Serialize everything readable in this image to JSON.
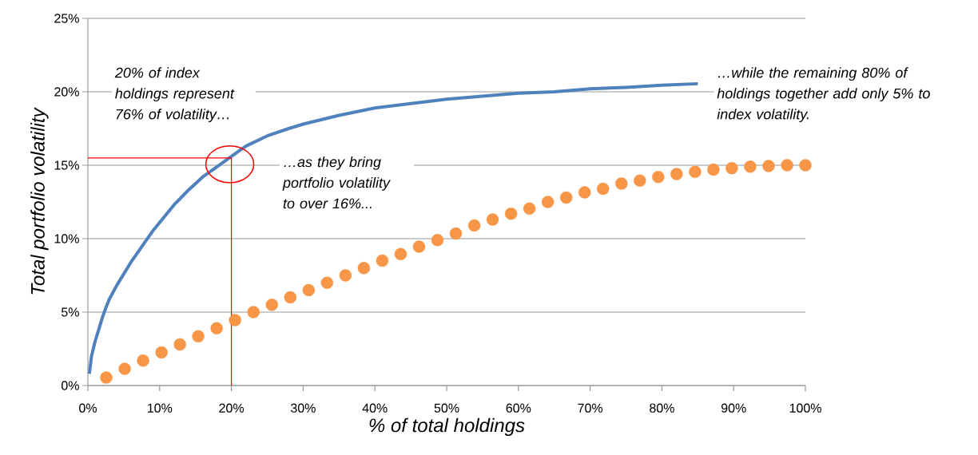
{
  "chart_data": {
    "type": "line",
    "xlabel": "% of total holdings",
    "ylabel": "Total portfolio volatility",
    "xlim": [
      0,
      100
    ],
    "ylim": [
      0,
      25
    ],
    "xticks": [
      {
        "value": 0,
        "label": "0%"
      },
      {
        "value": 10,
        "label": "10%"
      },
      {
        "value": 20,
        "label": "20%"
      },
      {
        "value": 30,
        "label": "30%"
      },
      {
        "value": 40,
        "label": "40%"
      },
      {
        "value": 50,
        "label": "50%"
      },
      {
        "value": 60,
        "label": "60%"
      },
      {
        "value": 70,
        "label": "70%"
      },
      {
        "value": 80,
        "label": "80%"
      },
      {
        "value": 90,
        "label": "90%"
      },
      {
        "value": 100,
        "label": "100%"
      }
    ],
    "yticks": [
      {
        "value": 0,
        "label": "0%"
      },
      {
        "value": 5,
        "label": "5%"
      },
      {
        "value": 10,
        "label": "10%"
      },
      {
        "value": 15,
        "label": "15%"
      },
      {
        "value": 20,
        "label": "20%"
      },
      {
        "value": 25,
        "label": "25%"
      }
    ],
    "grid": "y",
    "series": [
      {
        "color": "#4f81bd",
        "line_style": "solid",
        "marker": "none",
        "x": [
          0.2,
          0.5,
          1,
          1.5,
          2,
          2.5,
          3,
          4,
          5,
          6,
          7,
          8,
          9,
          10,
          12,
          14,
          16,
          18,
          20,
          22,
          25,
          28,
          30,
          35,
          40,
          45,
          50,
          55,
          60,
          65,
          70,
          75,
          80,
          85
        ],
        "values": [
          0.8,
          2,
          3,
          3.8,
          4.6,
          5.3,
          5.9,
          6.8,
          7.6,
          8.4,
          9.1,
          9.8,
          10.5,
          11.1,
          12.3,
          13.3,
          14.2,
          14.9,
          15.6,
          16.3,
          17.0,
          17.5,
          17.8,
          18.4,
          18.9,
          19.2,
          19.5,
          19.7,
          19.9,
          20.0,
          20.2,
          20.3,
          20.45,
          20.55
        ]
      },
      {
        "type": "scatter",
        "color": "#f79646",
        "marker": "circle",
        "x": [
          2.56,
          5.13,
          7.69,
          10.26,
          12.82,
          15.38,
          17.95,
          20.51,
          23.08,
          25.64,
          28.21,
          30.77,
          33.33,
          35.9,
          38.46,
          41.03,
          43.59,
          46.15,
          48.72,
          51.28,
          53.85,
          56.41,
          58.97,
          61.54,
          64.1,
          66.67,
          69.23,
          71.79,
          74.36,
          76.92,
          79.49,
          82.05,
          84.62,
          87.18,
          89.74,
          92.31,
          94.87,
          97.44,
          100
        ],
        "values": [
          0.54,
          1.14,
          1.7,
          2.25,
          2.8,
          3.35,
          3.9,
          4.45,
          5.0,
          5.5,
          6.0,
          6.5,
          7.0,
          7.5,
          8.0,
          8.5,
          8.95,
          9.45,
          9.9,
          10.35,
          10.9,
          11.3,
          11.7,
          12.05,
          12.5,
          12.8,
          13.15,
          13.4,
          13.75,
          13.95,
          14.2,
          14.4,
          14.55,
          14.7,
          14.8,
          14.9,
          14.95,
          15.0,
          15.0
        ]
      }
    ],
    "ref_lines": [
      {
        "axis": "x",
        "value": 20,
        "color": "#ff0000"
      },
      {
        "axis": "y",
        "value": 15.5,
        "color": "#ff0000"
      }
    ],
    "annotations": [
      {
        "text": "20% of index holdings represent 76% of volatility…",
        "x": 20,
        "y": 15.5
      },
      "…as they bring portfolio volatility to over 16%...",
      "…while the remaining 80% of holdings together add only 5% to index volatility."
    ]
  }
}
